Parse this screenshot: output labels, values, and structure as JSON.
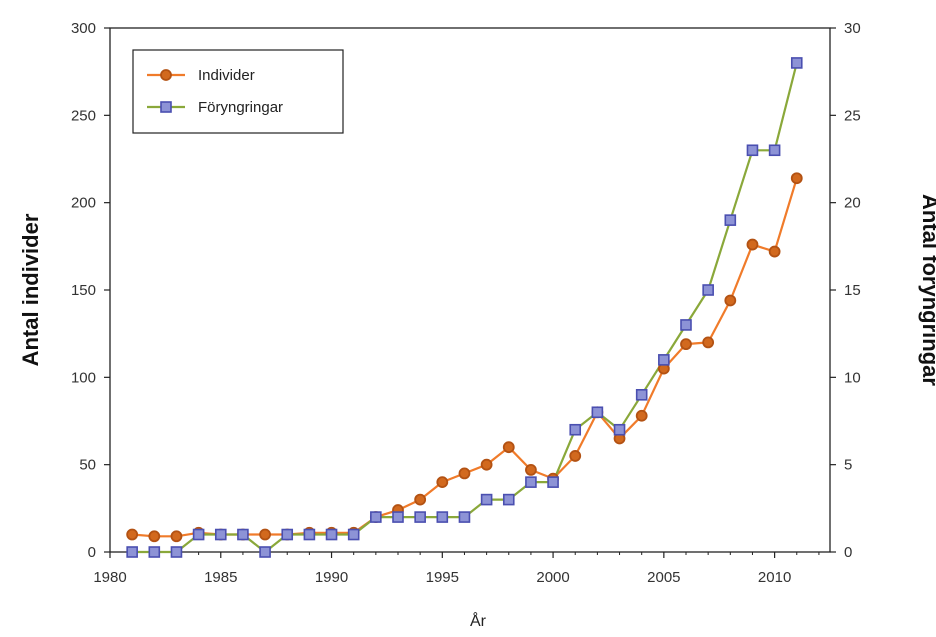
{
  "chart_data": {
    "type": "line",
    "xlabel": "År",
    "ylabel_left": "Antal individer",
    "ylabel_right": "Antal föryngringar",
    "xlim": [
      1980,
      2012.5
    ],
    "x_ticks": [
      "1980",
      "1985",
      "1990",
      "1995",
      "2000",
      "2005",
      "2010"
    ],
    "ylim_left": [
      0,
      300
    ],
    "y_ticks_left": [
      "0",
      "50",
      "100",
      "150",
      "200",
      "250",
      "300"
    ],
    "ylim_right": [
      0,
      30
    ],
    "y_ticks_right": [
      "0",
      "5",
      "10",
      "15",
      "20",
      "25",
      "30"
    ],
    "grid": false,
    "legend_position": "top-left",
    "x": [
      1981,
      1982,
      1983,
      1984,
      1985,
      1986,
      1987,
      1988,
      1989,
      1990,
      1991,
      1992,
      1993,
      1994,
      1995,
      1996,
      1997,
      1998,
      1999,
      2000,
      2001,
      2002,
      2003,
      2004,
      2005,
      2006,
      2007,
      2008,
      2009,
      2010,
      2011
    ],
    "series": [
      {
        "name": "Individer",
        "axis": "left",
        "color": "#f07b2a",
        "marker": "circle",
        "values": [
          10,
          9,
          9,
          11,
          10,
          10,
          10,
          10,
          11,
          11,
          11,
          20,
          24,
          30,
          40,
          45,
          50,
          60,
          47,
          42,
          55,
          80,
          65,
          78,
          105,
          119,
          120,
          144,
          176,
          172,
          214
        ]
      },
      {
        "name": "Föryngringar",
        "axis": "right",
        "color": "#8aa83a",
        "marker": "square",
        "values": [
          0,
          0,
          0,
          1,
          1,
          1,
          0,
          1,
          1,
          1,
          1,
          2,
          2,
          2,
          2,
          2,
          3,
          3,
          4,
          4,
          7,
          8,
          7,
          9,
          11,
          13,
          15,
          19,
          23,
          23,
          28
        ]
      }
    ]
  }
}
